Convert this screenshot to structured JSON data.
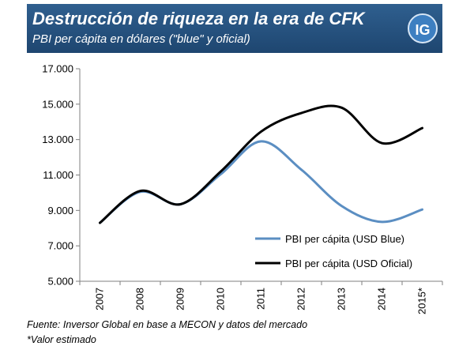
{
  "header": {
    "title": "Destrucción de riqueza en la era de CFK",
    "subtitle": "PBI per cápita en dólares (\"blue\" y oficial)",
    "logo": "IG"
  },
  "footer": {
    "source": "Fuente: Inversor Global en base a MECON y datos del mercado",
    "note": "*Valor estimado"
  },
  "chart_data": {
    "type": "line",
    "categories": [
      "2007",
      "2008",
      "2009",
      "2010",
      "2011",
      "2012",
      "2013",
      "2014",
      "2015*"
    ],
    "ylim": [
      5000,
      17000
    ],
    "yticks": [
      {
        "value": 5000,
        "label": "5.000"
      },
      {
        "value": 7000,
        "label": "7.000"
      },
      {
        "value": 9000,
        "label": "9.000"
      },
      {
        "value": 11000,
        "label": "11.000"
      },
      {
        "value": 13000,
        "label": "13.000"
      },
      {
        "value": 15000,
        "label": "15.000"
      },
      {
        "value": 17000,
        "label": "17.000"
      }
    ],
    "grid": false,
    "legend_position": "bottom-right",
    "series": [
      {
        "name": "PBI per cápita (USD Blue)",
        "color": "#5b8ec2",
        "values": [
          8300,
          10050,
          9350,
          11050,
          12900,
          11300,
          9250,
          8350,
          9050
        ]
      },
      {
        "name": "PBI per cápita (USD Oficial)",
        "color": "#000000",
        "values": [
          8300,
          10100,
          9350,
          11200,
          13450,
          14500,
          14800,
          12800,
          13650
        ]
      }
    ]
  }
}
